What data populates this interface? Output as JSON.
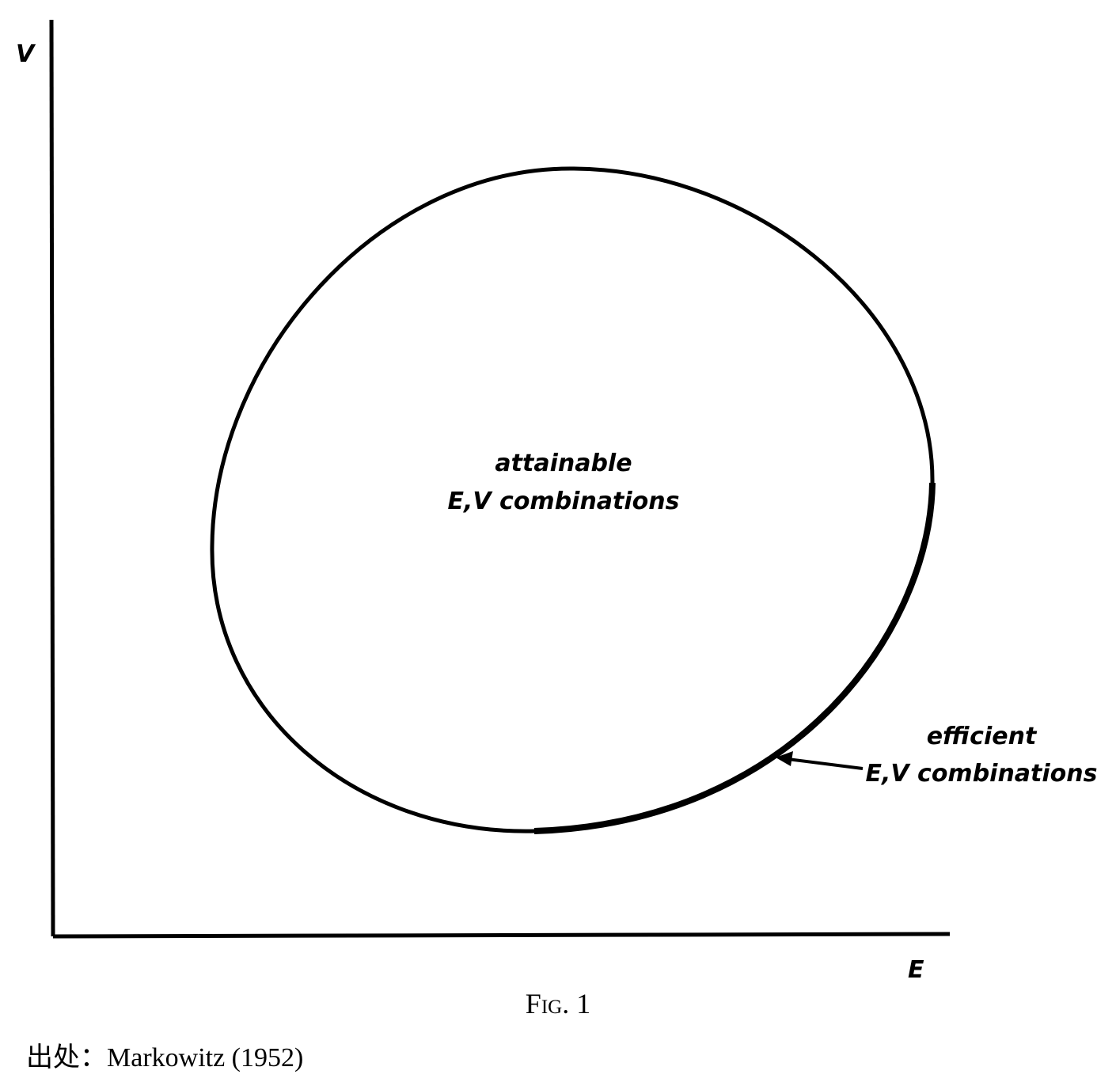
{
  "axes": {
    "y_label": "V",
    "x_label": "E"
  },
  "annotations": {
    "attainable": {
      "line1": "attainable",
      "line2": "E,V combinations"
    },
    "efficient": {
      "line1": "efficient",
      "line2": "E,V combinations"
    }
  },
  "caption": "Fig. 1",
  "source": "出处：Markowitz (1952)"
}
